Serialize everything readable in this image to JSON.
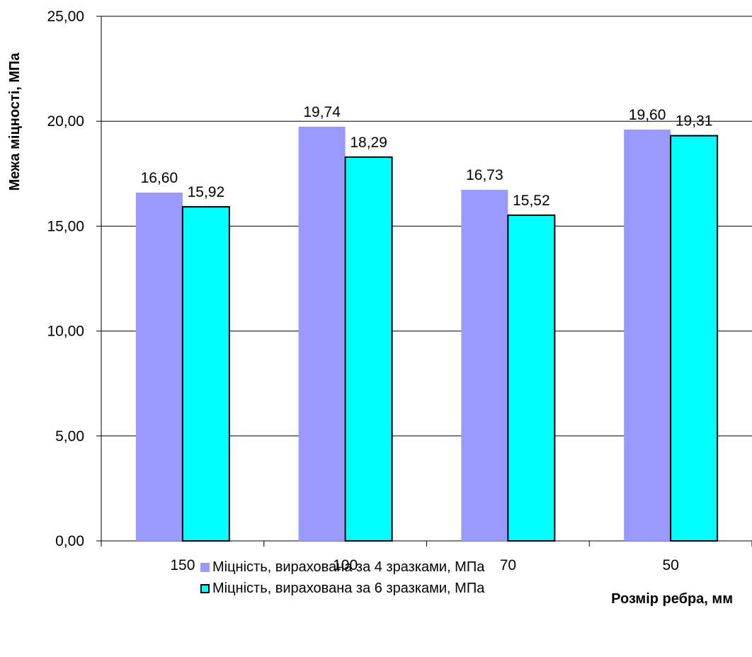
{
  "chart_data": {
    "type": "bar",
    "categories": [
      "150",
      "100",
      "70",
      "50"
    ],
    "series": [
      {
        "name": "Міцність, вирахована за 4 зразками, МПа",
        "values": [
          16.6,
          19.74,
          16.73,
          19.6
        ],
        "labels": [
          "16,60",
          "19,74",
          "16,73",
          "19,60"
        ],
        "color": "#9999FF",
        "border": "none"
      },
      {
        "name": "Міцність, вирахована за 6 зразками, МПа",
        "values": [
          15.92,
          18.29,
          15.52,
          19.31
        ],
        "labels": [
          "15,92",
          "18,29",
          "15,52",
          "19,31"
        ],
        "color": "#00FFFF",
        "border": "#000000"
      }
    ],
    "xlabel": "Розмір ребра, мм",
    "ylabel": "Межа міцності, МПа",
    "ylim": [
      0,
      25
    ],
    "yticks": [
      0,
      5,
      10,
      15,
      20,
      25
    ],
    "ytick_labels": [
      "0,00",
      "5,00",
      "10,00",
      "15,00",
      "20,00",
      "25,00"
    ],
    "grid": true,
    "legend_position": "bottom"
  }
}
